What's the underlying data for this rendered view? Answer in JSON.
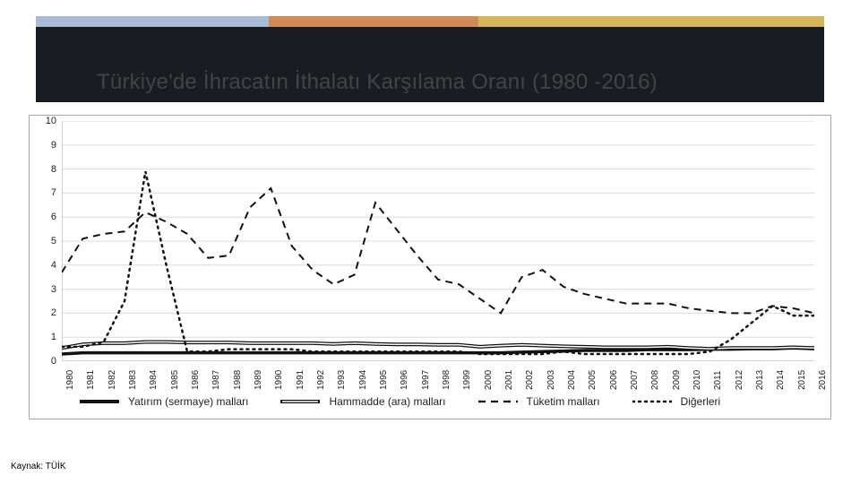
{
  "colors": {
    "rule1": "#a8bdd5",
    "rule2": "#d38b55",
    "rule3": "#d6b656",
    "band": "#181c23",
    "title_text": "#444444",
    "frame_border": "#a5a5a5",
    "grid": "#dcdcdc",
    "axis_text": "#222222",
    "series_color": "#111111",
    "background": "#ffffff"
  },
  "title": "Türkiye'de İhracatın İthalatı Karşılama Oranı (1980 -2016)",
  "title_fontsize": 24,
  "source_label": "Kaynak: TÜİK",
  "chart": {
    "type": "line",
    "xlim_years": [
      1980,
      2016
    ],
    "ylim": [
      0,
      10
    ],
    "ytick_step": 1,
    "yticks": [
      0,
      1,
      2,
      3,
      4,
      5,
      6,
      7,
      8,
      9,
      10
    ],
    "years": [
      1980,
      1981,
      1982,
      1983,
      1984,
      1985,
      1986,
      1987,
      1988,
      1989,
      1990,
      1991,
      1992,
      1993,
      1994,
      1995,
      1996,
      1997,
      1998,
      1999,
      2000,
      2001,
      2002,
      2003,
      2004,
      2005,
      2006,
      2007,
      2008,
      2009,
      2010,
      2011,
      2012,
      2013,
      2014,
      2015,
      2016
    ],
    "grid_on": true,
    "grid_color": "#dcdcdc",
    "axis_fontsize": 11,
    "x_label_rotation_deg": -90,
    "legend_position": "bottom-inside",
    "series": [
      {
        "name": "Yatırım (sermaye) malları",
        "style": "solid-thick",
        "line_width": 3.5,
        "dash": "none",
        "color": "#111111",
        "values": [
          0.3,
          0.35,
          0.35,
          0.35,
          0.35,
          0.35,
          0.35,
          0.35,
          0.35,
          0.35,
          0.35,
          0.35,
          0.35,
          0.35,
          0.35,
          0.35,
          0.35,
          0.35,
          0.35,
          0.35,
          0.35,
          0.35,
          0.38,
          0.4,
          0.42,
          0.45,
          0.45,
          0.45,
          0.48,
          0.48,
          0.48,
          0.5,
          0.5,
          0.52,
          0.52,
          0.55,
          0.52
        ]
      },
      {
        "name": "Hammadde (ara) malları",
        "style": "hollow-solid",
        "line_width": 2,
        "dash": "none",
        "color": "#111111",
        "fill": "#ffffff",
        "values": [
          0.55,
          0.7,
          0.75,
          0.75,
          0.8,
          0.8,
          0.78,
          0.78,
          0.78,
          0.75,
          0.75,
          0.75,
          0.75,
          0.72,
          0.75,
          0.72,
          0.7,
          0.7,
          0.68,
          0.68,
          0.6,
          0.65,
          0.68,
          0.65,
          0.62,
          0.6,
          0.58,
          0.58,
          0.58,
          0.6,
          0.55,
          0.52,
          0.55,
          0.55,
          0.55,
          0.58,
          0.55
        ]
      },
      {
        "name": "Tüketim malları",
        "style": "dashed",
        "line_width": 2,
        "dash": "8 6",
        "color": "#111111",
        "values": [
          3.7,
          5.1,
          5.3,
          5.4,
          6.2,
          5.8,
          5.3,
          4.3,
          4.4,
          6.4,
          7.2,
          4.8,
          3.8,
          3.2,
          3.6,
          6.6,
          5.5,
          4.4,
          3.4,
          3.2,
          2.6,
          2.0,
          3.5,
          3.8,
          3.1,
          2.8,
          2.6,
          2.4,
          2.4,
          2.4,
          2.2,
          2.1,
          2.0,
          2.0,
          2.3,
          2.2,
          2.0
        ]
      },
      {
        "name": "Diğerleri",
        "style": "dotted",
        "line_width": 2.5,
        "dash": "2 5",
        "color": "#111111",
        "values": [
          0.6,
          0.6,
          0.8,
          2.5,
          7.9,
          4.0,
          0.4,
          0.4,
          0.5,
          0.5,
          0.5,
          0.5,
          0.4,
          0.4,
          0.4,
          0.4,
          0.4,
          0.4,
          0.4,
          0.4,
          0.3,
          0.3,
          0.3,
          0.3,
          0.4,
          0.3,
          0.3,
          0.3,
          0.3,
          0.3,
          0.3,
          0.4,
          0.9,
          1.6,
          2.3,
          1.9,
          1.9
        ]
      }
    ]
  }
}
